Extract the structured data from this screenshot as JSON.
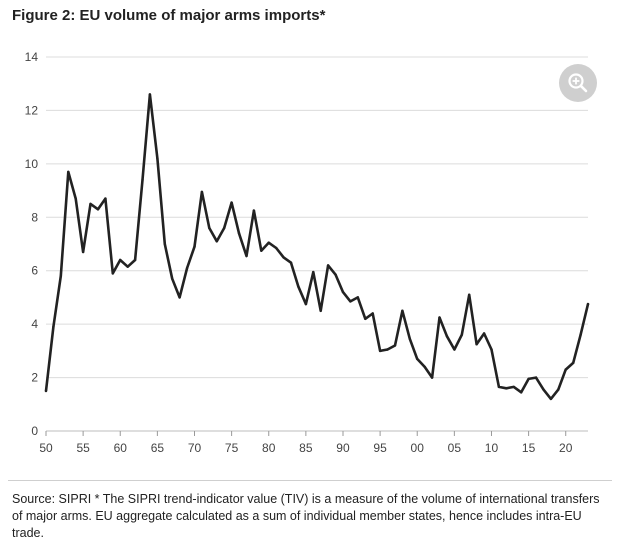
{
  "title": "Figure 2: EU volume of major arms imports*",
  "source": "Source: SIPRI * The SIPRI trend-indicator value (TIV) is a measure of the volume of international transfers of major arms. EU aggregate calculated as a sum of individual member states, hence includes intra-EU trade.",
  "zoom_icon": "zoom-in-icon",
  "colors": {
    "line": "#222222",
    "grid": "#dcdcdc",
    "zoom_bg": "#cfcfcf"
  },
  "chart_data": {
    "type": "line",
    "title": "Figure 2: EU volume of major arms imports*",
    "xlabel": "",
    "ylabel": "",
    "xlim": [
      1950,
      2023
    ],
    "ylim": [
      0,
      14
    ],
    "grid": true,
    "x_ticks": [
      1950,
      1955,
      1960,
      1965,
      1970,
      1975,
      1980,
      1985,
      1990,
      1995,
      2000,
      2005,
      2010,
      2015,
      2020
    ],
    "x_tick_labels": [
      "50",
      "55",
      "60",
      "65",
      "70",
      "75",
      "80",
      "85",
      "90",
      "95",
      "00",
      "05",
      "10",
      "15",
      "20"
    ],
    "y_ticks": [
      0,
      2,
      4,
      6,
      8,
      10,
      12,
      14
    ],
    "x": [
      1950,
      1951,
      1952,
      1953,
      1954,
      1955,
      1956,
      1957,
      1958,
      1959,
      1960,
      1961,
      1962,
      1963,
      1964,
      1965,
      1966,
      1967,
      1968,
      1969,
      1970,
      1971,
      1972,
      1973,
      1974,
      1975,
      1976,
      1977,
      1978,
      1979,
      1980,
      1981,
      1982,
      1983,
      1984,
      1985,
      1986,
      1987,
      1988,
      1989,
      1990,
      1991,
      1992,
      1993,
      1994,
      1995,
      1996,
      1997,
      1998,
      1999,
      2000,
      2001,
      2002,
      2003,
      2004,
      2005,
      2006,
      2007,
      2008,
      2009,
      2010,
      2011,
      2012,
      2013,
      2014,
      2015,
      2016,
      2017,
      2018,
      2019,
      2020,
      2021,
      2022,
      2023
    ],
    "series": [
      {
        "values": [
          1.5,
          3.9,
          5.8,
          9.7,
          8.7,
          6.7,
          8.5,
          8.3,
          8.7,
          5.9,
          6.4,
          6.15,
          6.4,
          9.4,
          12.6,
          10.2,
          7.0,
          5.7,
          5.0,
          6.1,
          6.9,
          8.95,
          7.6,
          7.1,
          7.6,
          8.55,
          7.4,
          6.55,
          8.25,
          6.75,
          7.05,
          6.85,
          6.5,
          6.3,
          5.4,
          4.75,
          5.95,
          4.5,
          6.2,
          5.85,
          5.2,
          4.85,
          5.0,
          4.2,
          4.4,
          3.0,
          3.05,
          3.2,
          4.5,
          3.45,
          2.7,
          2.4,
          2.0,
          4.25,
          3.55,
          3.05,
          3.6,
          5.1,
          3.25,
          3.65,
          3.05,
          1.65,
          1.6,
          1.65,
          1.45,
          1.95,
          2.0,
          1.55,
          1.2,
          1.55,
          2.3,
          2.55,
          3.6,
          4.75
        ]
      }
    ]
  }
}
